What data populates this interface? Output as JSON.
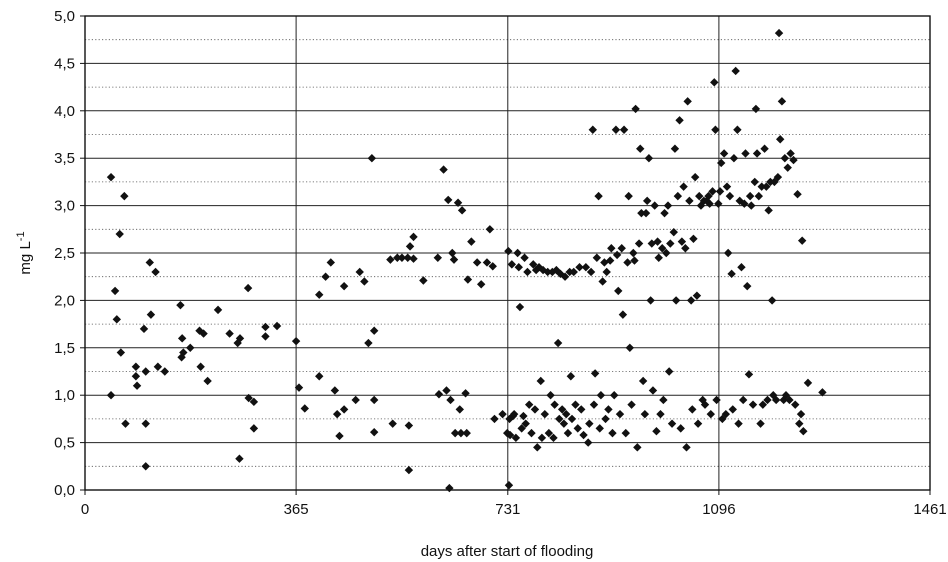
{
  "chart_data": {
    "type": "scatter",
    "title": "",
    "xlabel": "days after start of flooding",
    "ylabel": "mg L",
    "ylabel_superscript": "-1",
    "xlim": [
      0,
      1461
    ],
    "ylim": [
      0,
      5
    ],
    "x_ticks": [
      0,
      365,
      731,
      1096,
      1461
    ],
    "x_tick_labels": [
      "0",
      "365",
      "731",
      "1096",
      "1461"
    ],
    "y_ticks": [
      0,
      0.5,
      1,
      1.5,
      2,
      2.5,
      3,
      3.5,
      4,
      4.5,
      5
    ],
    "y_tick_labels": [
      "0,0",
      "0,5",
      "1,0",
      "1,5",
      "2,0",
      "2,5",
      "3,0",
      "3,5",
      "4,0",
      "4,5",
      "5,0"
    ],
    "grid": {
      "major": "solid",
      "minor": "dotted",
      "minor_y_step": 0.25
    },
    "marker": "diamond",
    "marker_color": "#111111",
    "points": [
      [
        45,
        3.3
      ],
      [
        45,
        1.0
      ],
      [
        52,
        2.1
      ],
      [
        55,
        1.8
      ],
      [
        60,
        2.7
      ],
      [
        62,
        1.45
      ],
      [
        68,
        3.1
      ],
      [
        70,
        0.7
      ],
      [
        88,
        1.3
      ],
      [
        88,
        1.2
      ],
      [
        90,
        1.1
      ],
      [
        102,
        1.7
      ],
      [
        105,
        0.7
      ],
      [
        105,
        1.25
      ],
      [
        105,
        0.25
      ],
      [
        112,
        2.4
      ],
      [
        114,
        1.85
      ],
      [
        122,
        2.3
      ],
      [
        126,
        1.3
      ],
      [
        138,
        1.25
      ],
      [
        165,
        1.95
      ],
      [
        167,
        1.4
      ],
      [
        168,
        1.6
      ],
      [
        170,
        1.45
      ],
      [
        182,
        1.5
      ],
      [
        198,
        1.68
      ],
      [
        200,
        1.3
      ],
      [
        205,
        1.65
      ],
      [
        212,
        1.15
      ],
      [
        230,
        1.9
      ],
      [
        250,
        1.65
      ],
      [
        264,
        1.55
      ],
      [
        267,
        0.33
      ],
      [
        268,
        1.6
      ],
      [
        282,
        2.13
      ],
      [
        283,
        0.97
      ],
      [
        292,
        0.93
      ],
      [
        292,
        0.65
      ],
      [
        312,
        1.72
      ],
      [
        312,
        1.62
      ],
      [
        332,
        1.73
      ],
      [
        365,
        1.57
      ],
      [
        370,
        1.08
      ],
      [
        380,
        0.86
      ],
      [
        405,
        2.06
      ],
      [
        405,
        1.2
      ],
      [
        416,
        2.25
      ],
      [
        425,
        2.4
      ],
      [
        432,
        1.05
      ],
      [
        436,
        0.8
      ],
      [
        440,
        0.57
      ],
      [
        448,
        2.15
      ],
      [
        448,
        0.85
      ],
      [
        468,
        0.95
      ],
      [
        475,
        2.3
      ],
      [
        483,
        2.2
      ],
      [
        490,
        1.55
      ],
      [
        496,
        3.5
      ],
      [
        500,
        1.68
      ],
      [
        500,
        0.61
      ],
      [
        500,
        0.95
      ],
      [
        528,
        2.43
      ],
      [
        532,
        0.7
      ],
      [
        540,
        2.45
      ],
      [
        548,
        2.45
      ],
      [
        558,
        2.45
      ],
      [
        560,
        0.68
      ],
      [
        560,
        0.21
      ],
      [
        562,
        2.57
      ],
      [
        568,
        2.67
      ],
      [
        568,
        2.44
      ],
      [
        585,
        2.21
      ],
      [
        610,
        2.45
      ],
      [
        612,
        1.01
      ],
      [
        620,
        3.38
      ],
      [
        625,
        1.05
      ],
      [
        628,
        3.06
      ],
      [
        630,
        0.02
      ],
      [
        632,
        0.95
      ],
      [
        635,
        2.5
      ],
      [
        638,
        2.43
      ],
      [
        640,
        0.6
      ],
      [
        645,
        3.03
      ],
      [
        648,
        0.85
      ],
      [
        650,
        0.6
      ],
      [
        652,
        2.95
      ],
      [
        658,
        1.02
      ],
      [
        660,
        0.6
      ],
      [
        662,
        2.22
      ],
      [
        668,
        2.62
      ],
      [
        678,
        2.4
      ],
      [
        685,
        2.17
      ],
      [
        695,
        2.4
      ],
      [
        700,
        2.75
      ],
      [
        705,
        2.36
      ],
      [
        708,
        0.75
      ],
      [
        722,
        0.8
      ],
      [
        730,
        0.6
      ],
      [
        732,
        2.52
      ],
      [
        733,
        0.05
      ],
      [
        734,
        0.75
      ],
      [
        735,
        0.58
      ],
      [
        738,
        2.38
      ],
      [
        740,
        0.78
      ],
      [
        742,
        0.8
      ],
      [
        745,
        0.55
      ],
      [
        748,
        2.5
      ],
      [
        750,
        2.35
      ],
      [
        752,
        1.93
      ],
      [
        755,
        0.65
      ],
      [
        758,
        0.78
      ],
      [
        760,
        2.45
      ],
      [
        762,
        0.7
      ],
      [
        765,
        2.3
      ],
      [
        768,
        0.9
      ],
      [
        772,
        0.6
      ],
      [
        775,
        2.38
      ],
      [
        778,
        0.85
      ],
      [
        780,
        2.32
      ],
      [
        782,
        0.45
      ],
      [
        785,
        2.35
      ],
      [
        788,
        1.15
      ],
      [
        790,
        0.55
      ],
      [
        792,
        2.32
      ],
      [
        795,
        0.8
      ],
      [
        800,
        2.3
      ],
      [
        802,
        0.6
      ],
      [
        805,
        1.0
      ],
      [
        808,
        2.3
      ],
      [
        810,
        0.55
      ],
      [
        812,
        0.9
      ],
      [
        815,
        2.32
      ],
      [
        818,
        1.55
      ],
      [
        820,
        0.75
      ],
      [
        822,
        2.28
      ],
      [
        825,
        0.85
      ],
      [
        828,
        0.7
      ],
      [
        830,
        2.25
      ],
      [
        832,
        0.8
      ],
      [
        835,
        0.6
      ],
      [
        838,
        2.3
      ],
      [
        840,
        1.2
      ],
      [
        842,
        0.75
      ],
      [
        845,
        2.3
      ],
      [
        848,
        0.9
      ],
      [
        852,
        0.65
      ],
      [
        855,
        2.35
      ],
      [
        858,
        0.85
      ],
      [
        862,
        0.58
      ],
      [
        866,
        2.35
      ],
      [
        870,
        0.5
      ],
      [
        872,
        0.7
      ],
      [
        875,
        2.3
      ],
      [
        878,
        3.8
      ],
      [
        880,
        0.9
      ],
      [
        882,
        1.23
      ],
      [
        885,
        2.45
      ],
      [
        888,
        3.1
      ],
      [
        890,
        0.65
      ],
      [
        892,
        1.0
      ],
      [
        895,
        2.2
      ],
      [
        898,
        2.4
      ],
      [
        900,
        0.75
      ],
      [
        902,
        2.3
      ],
      [
        905,
        0.85
      ],
      [
        908,
        2.42
      ],
      [
        910,
        2.55
      ],
      [
        912,
        0.6
      ],
      [
        915,
        1.0
      ],
      [
        918,
        3.8
      ],
      [
        920,
        2.48
      ],
      [
        922,
        2.1
      ],
      [
        925,
        0.8
      ],
      [
        928,
        2.55
      ],
      [
        930,
        1.85
      ],
      [
        932,
        3.8
      ],
      [
        935,
        0.6
      ],
      [
        938,
        2.4
      ],
      [
        940,
        3.1
      ],
      [
        942,
        1.5
      ],
      [
        945,
        0.9
      ],
      [
        948,
        2.5
      ],
      [
        950,
        2.42
      ],
      [
        952,
        4.02
      ],
      [
        955,
        0.45
      ],
      [
        958,
        2.6
      ],
      [
        960,
        3.6
      ],
      [
        962,
        2.92
      ],
      [
        965,
        1.15
      ],
      [
        968,
        0.8
      ],
      [
        970,
        2.92
      ],
      [
        972,
        3.05
      ],
      [
        975,
        3.5
      ],
      [
        978,
        2.0
      ],
      [
        980,
        2.6
      ],
      [
        982,
        1.05
      ],
      [
        985,
        3.0
      ],
      [
        988,
        0.62
      ],
      [
        990,
        2.62
      ],
      [
        992,
        2.45
      ],
      [
        995,
        0.8
      ],
      [
        998,
        2.55
      ],
      [
        1000,
        0.95
      ],
      [
        1002,
        2.92
      ],
      [
        1005,
        2.5
      ],
      [
        1008,
        3.0
      ],
      [
        1010,
        1.25
      ],
      [
        1012,
        2.6
      ],
      [
        1015,
        0.7
      ],
      [
        1018,
        2.72
      ],
      [
        1020,
        3.6
      ],
      [
        1022,
        2.0
      ],
      [
        1025,
        3.1
      ],
      [
        1028,
        3.9
      ],
      [
        1030,
        0.65
      ],
      [
        1032,
        2.62
      ],
      [
        1035,
        3.2
      ],
      [
        1038,
        2.55
      ],
      [
        1040,
        0.45
      ],
      [
        1042,
        4.1
      ],
      [
        1045,
        3.05
      ],
      [
        1048,
        2.0
      ],
      [
        1050,
        0.85
      ],
      [
        1052,
        2.65
      ],
      [
        1055,
        3.3
      ],
      [
        1058,
        2.05
      ],
      [
        1060,
        0.7
      ],
      [
        1062,
        3.1
      ],
      [
        1065,
        3.0
      ],
      [
        1068,
        0.95
      ],
      [
        1070,
        3.05
      ],
      [
        1072,
        0.9
      ],
      [
        1075,
        3.05
      ],
      [
        1078,
        3.1
      ],
      [
        1080,
        3.02
      ],
      [
        1082,
        0.8
      ],
      [
        1085,
        3.15
      ],
      [
        1088,
        4.3
      ],
      [
        1090,
        3.8
      ],
      [
        1092,
        0.95
      ],
      [
        1095,
        3.02
      ],
      [
        1098,
        3.15
      ],
      [
        1100,
        3.45
      ],
      [
        1102,
        0.75
      ],
      [
        1105,
        3.55
      ],
      [
        1108,
        0.8
      ],
      [
        1110,
        3.2
      ],
      [
        1112,
        2.5
      ],
      [
        1115,
        3.1
      ],
      [
        1118,
        2.28
      ],
      [
        1120,
        0.85
      ],
      [
        1122,
        3.5
      ],
      [
        1125,
        4.42
      ],
      [
        1128,
        3.8
      ],
      [
        1130,
        0.7
      ],
      [
        1132,
        3.05
      ],
      [
        1135,
        2.35
      ],
      [
        1138,
        0.95
      ],
      [
        1140,
        3.02
      ],
      [
        1142,
        3.55
      ],
      [
        1145,
        2.15
      ],
      [
        1148,
        1.22
      ],
      [
        1150,
        3.1
      ],
      [
        1152,
        3.0
      ],
      [
        1155,
        0.9
      ],
      [
        1158,
        3.25
      ],
      [
        1160,
        4.02
      ],
      [
        1162,
        3.55
      ],
      [
        1165,
        3.1
      ],
      [
        1168,
        0.7
      ],
      [
        1170,
        3.2
      ],
      [
        1172,
        0.9
      ],
      [
        1175,
        3.6
      ],
      [
        1178,
        3.2
      ],
      [
        1180,
        0.95
      ],
      [
        1182,
        2.95
      ],
      [
        1185,
        3.25
      ],
      [
        1188,
        2.0
      ],
      [
        1190,
        1.0
      ],
      [
        1192,
        3.25
      ],
      [
        1195,
        0.95
      ],
      [
        1198,
        3.3
      ],
      [
        1200,
        4.82
      ],
      [
        1202,
        3.7
      ],
      [
        1205,
        4.1
      ],
      [
        1208,
        0.95
      ],
      [
        1210,
        3.5
      ],
      [
        1212,
        1.0
      ],
      [
        1215,
        3.4
      ],
      [
        1218,
        0.95
      ],
      [
        1220,
        3.55
      ],
      [
        1225,
        3.48
      ],
      [
        1228,
        0.9
      ],
      [
        1232,
        3.12
      ],
      [
        1235,
        0.7
      ],
      [
        1238,
        0.8
      ],
      [
        1240,
        2.63
      ],
      [
        1242,
        0.62
      ],
      [
        1250,
        1.13
      ],
      [
        1275,
        1.03
      ]
    ]
  }
}
